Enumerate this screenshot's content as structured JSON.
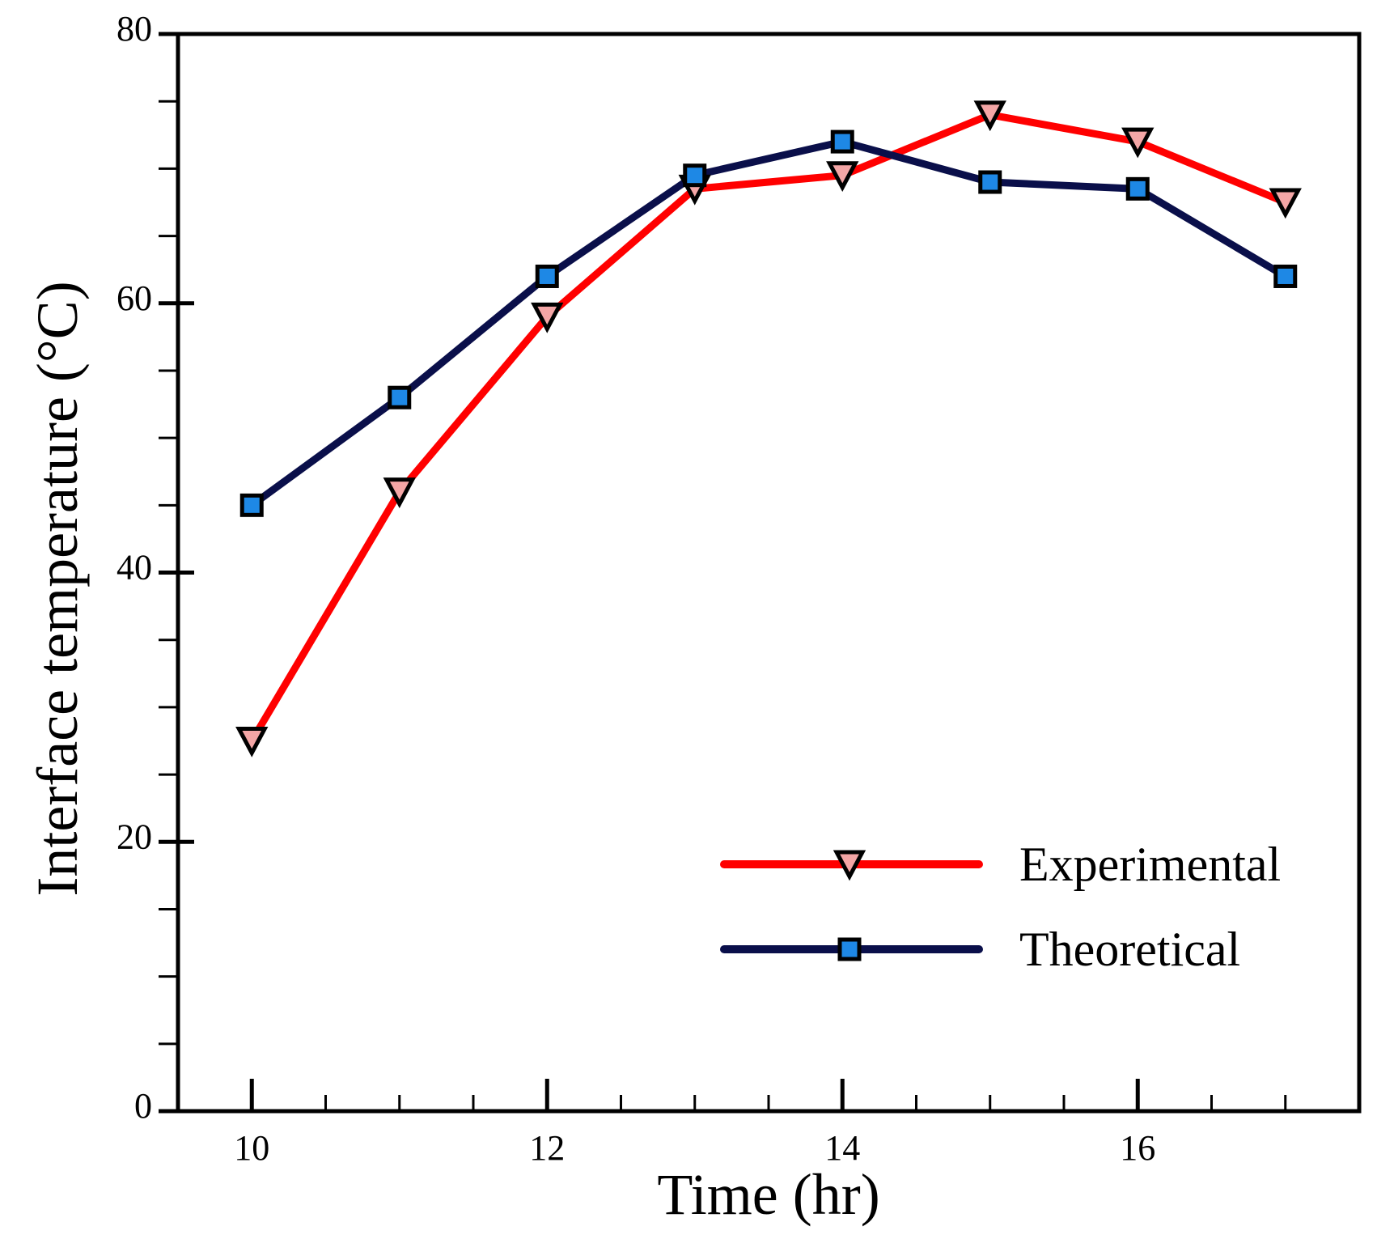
{
  "chart_data": {
    "type": "line",
    "title": "",
    "xlabel": "Time (hr)",
    "ylabel": "Interface temperature (°C)",
    "xlim": [
      9.5,
      17.5
    ],
    "ylim": [
      0,
      80
    ],
    "xticks": [
      10,
      12,
      14,
      16
    ],
    "xminor_step": 0.5,
    "yticks": [
      0,
      20,
      40,
      60,
      80
    ],
    "yminor_step": 5,
    "legend_position": "bottom-right",
    "x": [
      10,
      11,
      12,
      13,
      14,
      15,
      16,
      17
    ],
    "series": [
      {
        "name": "Experimental",
        "color": "#ff0000",
        "marker": "triangle-down",
        "marker_fill": "#f4a6a6",
        "values": [
          27.5,
          46,
          59,
          68.5,
          69.5,
          74,
          72,
          67.5
        ]
      },
      {
        "name": "Theoretical",
        "color": "#0a0f4a",
        "marker": "square",
        "marker_fill": "#1e88e5",
        "values": [
          45,
          53,
          62,
          69.5,
          72,
          69,
          68.5,
          62
        ]
      }
    ]
  }
}
